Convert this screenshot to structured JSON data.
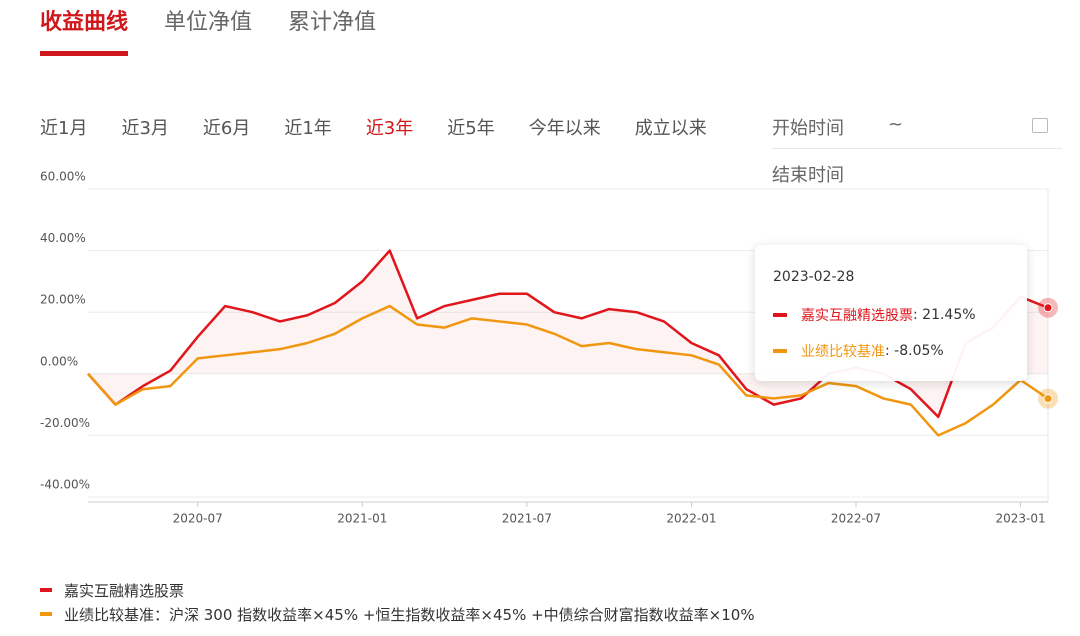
{
  "tabs": {
    "items": [
      "收益曲线",
      "单位净值",
      "累计净值"
    ],
    "active": 0
  },
  "ranges": {
    "items": [
      "近1月",
      "近3月",
      "近6月",
      "近1年",
      "近3年",
      "近5年",
      "今年以来",
      "成立以来"
    ],
    "active": 4
  },
  "date_picker": {
    "start": "开始时间",
    "separator": "~",
    "end": "结束时间"
  },
  "chart_data": {
    "type": "line",
    "x": [
      "2020-03",
      "2020-04",
      "2020-05",
      "2020-06",
      "2020-07",
      "2020-08",
      "2020-09",
      "2020-10",
      "2020-11",
      "2020-12",
      "2021-01",
      "2021-02",
      "2021-03",
      "2021-04",
      "2021-05",
      "2021-06",
      "2021-07",
      "2021-08",
      "2021-09",
      "2021-10",
      "2021-11",
      "2021-12",
      "2022-01",
      "2022-02",
      "2022-03",
      "2022-04",
      "2022-05",
      "2022-06",
      "2022-07",
      "2022-08",
      "2022-09",
      "2022-10",
      "2022-11",
      "2022-12",
      "2023-01",
      "2023-02"
    ],
    "xlim": [
      "2020-03",
      "2023-02"
    ],
    "xticks": [
      "2020-07",
      "2021-01",
      "2021-07",
      "2022-01",
      "2022-07",
      "2023-01"
    ],
    "ylim": [
      -40,
      60
    ],
    "yticks": [
      {
        "value": -40,
        "label": "-40.00%"
      },
      {
        "value": -20,
        "label": "-20.00%"
      },
      {
        "value": 0,
        "label": "0.00%"
      },
      {
        "value": 20,
        "label": "20.00%"
      },
      {
        "value": 40,
        "label": "40.00%"
      },
      {
        "value": 60,
        "label": "60.00%"
      }
    ],
    "grid": true,
    "series": [
      {
        "name": "嘉实互融精选股票",
        "color": "#e0161c",
        "area": true,
        "values": [
          0,
          -10,
          -4,
          1,
          12,
          22,
          20,
          17,
          19,
          23,
          30,
          40,
          18,
          22,
          24,
          26,
          26,
          20,
          18,
          21,
          20,
          17,
          10,
          6,
          -5,
          -10,
          -8,
          0,
          2,
          0,
          -5,
          -14,
          10,
          15,
          25,
          21.45
        ]
      },
      {
        "name": "业绩比较基准",
        "color": "#f0960f",
        "area": false,
        "values": [
          0,
          -10,
          -5,
          -4,
          5,
          6,
          7,
          8,
          10,
          13,
          18,
          22,
          16,
          15,
          18,
          17,
          16,
          13,
          9,
          10,
          8,
          7,
          6,
          3,
          -7,
          -8,
          -7,
          -3,
          -4,
          -8,
          -10,
          -20,
          -16,
          -10,
          -2,
          -8.05
        ]
      }
    ],
    "tooltip": {
      "date": "2023-02-28",
      "labels": [
        "21.45%",
        "-8.05%"
      ]
    },
    "legend_labels": [
      "嘉实互融精选股票",
      "业绩比较基准：沪深 300 指数收益率×45% +恒生指数收益率×45% +中债综合财富指数收益率×10%"
    ]
  }
}
